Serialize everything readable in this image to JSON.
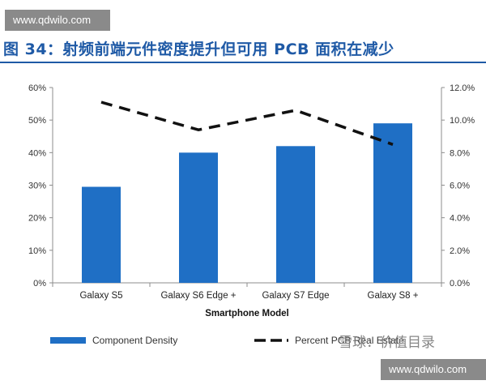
{
  "watermark": {
    "top": "www.qdwilo.com",
    "bottom": "www.qdwilo.com"
  },
  "figure_title": "图 34：射频前端元件密度提升但可用 PCB 面积在减少",
  "overlay_watermark": "雪球：价值目录",
  "colors": {
    "bar": "#1f6fc5",
    "line": "#111111",
    "title": "#1f5aa6",
    "axis": "#8c8c8c"
  },
  "chart_data": {
    "type": "bar",
    "categories": [
      "Galaxy S5",
      "Galaxy S6 Edge +",
      "Galaxy S7 Edge",
      "Galaxy S8 +"
    ],
    "xlabel": "Smartphone Model",
    "series": [
      {
        "name": "Component Density",
        "type": "bar",
        "axis": "left",
        "values": [
          29.5,
          40,
          42,
          49
        ]
      },
      {
        "name": "Percent PCB Real Estate",
        "type": "line",
        "style": "dashed",
        "axis": "right",
        "values": [
          11.1,
          9.4,
          10.6,
          8.5
        ]
      }
    ],
    "y_left": {
      "ylim": [
        0,
        60
      ],
      "ticks": [
        "0%",
        "10%",
        "20%",
        "30%",
        "40%",
        "50%",
        "60%"
      ]
    },
    "y_right": {
      "ylim": [
        0,
        12
      ],
      "ticks": [
        "0.0%",
        "2.0%",
        "4.0%",
        "6.0%",
        "8.0%",
        "10.0%",
        "12.0%"
      ]
    },
    "legend_position": "bottom",
    "legend": [
      {
        "label": "Component Density",
        "symbol": "bar"
      },
      {
        "label": "Percent PCB Real Estate",
        "symbol": "dash"
      }
    ]
  }
}
